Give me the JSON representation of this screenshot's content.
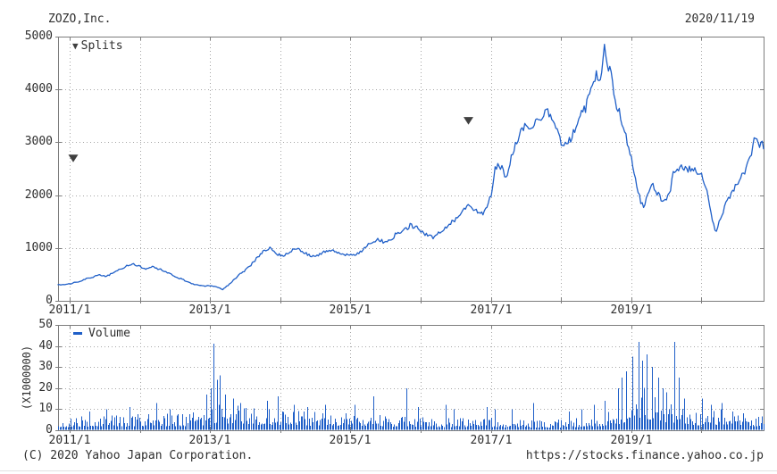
{
  "header": {
    "title": "ZOZO,Inc.",
    "date": "2020/11/19"
  },
  "legend": {
    "splits": "Splits",
    "volume": "Volume"
  },
  "footer": {
    "copyright": "(C) 2020 Yahoo Japan Corporation.",
    "url": "https://stocks.finance.yahoo.co.jp"
  },
  "colors": {
    "line": "#1f5fc8",
    "bar": "#1f5fc8",
    "grid": "#a6a6a6",
    "frame": "#7d7d7d",
    "marker": "#3f3f3f",
    "text": "#2e2e2e"
  },
  "chart_data": [
    {
      "type": "line",
      "name": "price",
      "title": "ZOZO,Inc. stock price (JPY)",
      "x_range": [
        2010.8333,
        2020.885
      ],
      "ylim": [
        0,
        5000
      ],
      "yticks": [
        0,
        1000,
        2000,
        3000,
        4000,
        5000
      ],
      "grid_years": [
        2011,
        2012,
        2013,
        2014,
        2015,
        2016,
        2017,
        2018,
        2019,
        2020
      ],
      "xticks": [
        {
          "x": 2011,
          "label": "2011/1"
        },
        {
          "x": 2013,
          "label": "2013/1"
        },
        {
          "x": 2015,
          "label": "2015/1"
        },
        {
          "x": 2017,
          "label": "2017/1"
        },
        {
          "x": 2019,
          "label": "2019/1"
        }
      ],
      "splits": [
        {
          "x": 2011.05,
          "y": 2700
        },
        {
          "x": 2016.68,
          "y": 3410
        }
      ],
      "anchors": [
        [
          2010.87,
          300
        ],
        [
          2011.0,
          320
        ],
        [
          2011.12,
          360
        ],
        [
          2011.22,
          410
        ],
        [
          2011.32,
          440
        ],
        [
          2011.42,
          490
        ],
        [
          2011.52,
          460
        ],
        [
          2011.65,
          550
        ],
        [
          2011.78,
          640
        ],
        [
          2011.9,
          700
        ],
        [
          2011.98,
          660
        ],
        [
          2012.08,
          600
        ],
        [
          2012.18,
          650
        ],
        [
          2012.28,
          600
        ],
        [
          2012.4,
          530
        ],
        [
          2012.52,
          450
        ],
        [
          2012.65,
          380
        ],
        [
          2012.78,
          310
        ],
        [
          2012.9,
          280
        ],
        [
          2013.0,
          285
        ],
        [
          2013.1,
          260
        ],
        [
          2013.18,
          215
        ],
        [
          2013.28,
          320
        ],
        [
          2013.4,
          480
        ],
        [
          2013.52,
          600
        ],
        [
          2013.64,
          760
        ],
        [
          2013.76,
          950
        ],
        [
          2013.85,
          1000
        ],
        [
          2013.95,
          880
        ],
        [
          2014.05,
          860
        ],
        [
          2014.15,
          950
        ],
        [
          2014.25,
          990
        ],
        [
          2014.35,
          900
        ],
        [
          2014.45,
          830
        ],
        [
          2014.55,
          870
        ],
        [
          2014.65,
          940
        ],
        [
          2014.75,
          960
        ],
        [
          2014.85,
          890
        ],
        [
          2014.95,
          860
        ],
        [
          2015.05,
          880
        ],
        [
          2015.15,
          930
        ],
        [
          2015.25,
          1060
        ],
        [
          2015.38,
          1170
        ],
        [
          2015.5,
          1090
        ],
        [
          2015.62,
          1220
        ],
        [
          2015.75,
          1340
        ],
        [
          2015.85,
          1420
        ],
        [
          2015.95,
          1370
        ],
        [
          2016.05,
          1270
        ],
        [
          2016.18,
          1210
        ],
        [
          2016.32,
          1350
        ],
        [
          2016.45,
          1480
        ],
        [
          2016.58,
          1690
        ],
        [
          2016.68,
          1810
        ],
        [
          2016.78,
          1720
        ],
        [
          2016.88,
          1620
        ],
        [
          2016.96,
          1850
        ],
        [
          2017.02,
          2100
        ],
        [
          2017.06,
          2500
        ],
        [
          2017.15,
          2520
        ],
        [
          2017.22,
          2360
        ],
        [
          2017.3,
          2750
        ],
        [
          2017.4,
          3100
        ],
        [
          2017.48,
          3300
        ],
        [
          2017.55,
          3180
        ],
        [
          2017.62,
          3420
        ],
        [
          2017.7,
          3350
        ],
        [
          2017.78,
          3620
        ],
        [
          2017.88,
          3420
        ],
        [
          2017.96,
          3180
        ],
        [
          2018.04,
          2900
        ],
        [
          2018.12,
          3060
        ],
        [
          2018.22,
          3320
        ],
        [
          2018.32,
          3560
        ],
        [
          2018.42,
          3980
        ],
        [
          2018.5,
          4250
        ],
        [
          2018.55,
          4080
        ],
        [
          2018.62,
          4800
        ],
        [
          2018.66,
          4380
        ],
        [
          2018.7,
          4520
        ],
        [
          2018.76,
          3850
        ],
        [
          2018.82,
          3620
        ],
        [
          2018.88,
          3320
        ],
        [
          2018.94,
          3020
        ],
        [
          2019.0,
          2720
        ],
        [
          2019.06,
          2280
        ],
        [
          2019.12,
          1950
        ],
        [
          2019.17,
          1770
        ],
        [
          2019.24,
          2000
        ],
        [
          2019.3,
          2230
        ],
        [
          2019.38,
          2020
        ],
        [
          2019.45,
          1880
        ],
        [
          2019.52,
          1980
        ],
        [
          2019.56,
          2120
        ],
        [
          2019.6,
          2450
        ],
        [
          2019.7,
          2500
        ],
        [
          2019.8,
          2512
        ],
        [
          2019.9,
          2480
        ],
        [
          2019.97,
          2420
        ],
        [
          2020.03,
          2250
        ],
        [
          2020.08,
          2050
        ],
        [
          2020.14,
          1600
        ],
        [
          2020.2,
          1280
        ],
        [
          2020.28,
          1600
        ],
        [
          2020.35,
          1850
        ],
        [
          2020.42,
          2050
        ],
        [
          2020.48,
          2180
        ],
        [
          2020.55,
          2320
        ],
        [
          2020.62,
          2450
        ],
        [
          2020.68,
          2700
        ],
        [
          2020.74,
          2980
        ],
        [
          2020.79,
          3120
        ],
        [
          2020.82,
          2840
        ],
        [
          2020.85,
          3060
        ],
        [
          2020.885,
          2780
        ]
      ]
    },
    {
      "type": "bar",
      "name": "volume",
      "legend": "Volume",
      "unit_label": "(X1000000)",
      "x_range": [
        2010.8333,
        2020.885
      ],
      "ylim": [
        0,
        50
      ],
      "yticks": [
        0,
        10,
        20,
        30,
        40,
        50
      ],
      "xticks": [
        {
          "x": 2011,
          "label": "2011/1"
        },
        {
          "x": 2013,
          "label": "2013/1"
        },
        {
          "x": 2015,
          "label": "2015/1"
        },
        {
          "x": 2017,
          "label": "2017/1"
        },
        {
          "x": 2019,
          "label": "2019/1"
        }
      ],
      "baseline": [
        [
          2010.87,
          3.2
        ],
        [
          2011.3,
          4.0
        ],
        [
          2011.8,
          4.2
        ],
        [
          2012.2,
          4.5
        ],
        [
          2012.7,
          4.5
        ],
        [
          2012.95,
          6.0
        ],
        [
          2013.08,
          8.5
        ],
        [
          2013.3,
          7.5
        ],
        [
          2013.6,
          6.0
        ],
        [
          2014.0,
          5.5
        ],
        [
          2014.5,
          5.0
        ],
        [
          2015.0,
          4.5
        ],
        [
          2015.5,
          4.2
        ],
        [
          2016.0,
          3.6
        ],
        [
          2016.5,
          3.2
        ],
        [
          2017.0,
          3.4
        ],
        [
          2017.5,
          2.8
        ],
        [
          2018.0,
          3.0
        ],
        [
          2018.5,
          3.8
        ],
        [
          2018.8,
          6.5
        ],
        [
          2019.0,
          11
        ],
        [
          2019.15,
          14
        ],
        [
          2019.3,
          11
        ],
        [
          2019.5,
          9
        ],
        [
          2019.65,
          8
        ],
        [
          2019.8,
          6
        ],
        [
          2020.0,
          5.5
        ],
        [
          2020.3,
          6.0
        ],
        [
          2020.6,
          5.0
        ],
        [
          2020.885,
          4.0
        ]
      ],
      "spikes": [
        [
          2011.28,
          9
        ],
        [
          2011.53,
          10
        ],
        [
          2011.85,
          11
        ],
        [
          2012.23,
          13
        ],
        [
          2012.42,
          10
        ],
        [
          2012.95,
          17
        ],
        [
          2013.0,
          20
        ],
        [
          2013.05,
          41
        ],
        [
          2013.1,
          24
        ],
        [
          2013.14,
          26
        ],
        [
          2013.21,
          17
        ],
        [
          2013.33,
          15
        ],
        [
          2013.43,
          13
        ],
        [
          2013.81,
          14
        ],
        [
          2013.97,
          16
        ],
        [
          2014.19,
          12
        ],
        [
          2014.38,
          11
        ],
        [
          2014.63,
          12
        ],
        [
          2015.07,
          12
        ],
        [
          2015.33,
          16
        ],
        [
          2015.79,
          20
        ],
        [
          2015.96,
          11
        ],
        [
          2016.34,
          12
        ],
        [
          2016.46,
          10
        ],
        [
          2016.94,
          11
        ],
        [
          2017.06,
          10
        ],
        [
          2017.29,
          10
        ],
        [
          2017.6,
          13
        ],
        [
          2018.11,
          9
        ],
        [
          2018.3,
          10
        ],
        [
          2018.46,
          12
        ],
        [
          2018.62,
          14
        ],
        [
          2018.81,
          20
        ],
        [
          2018.87,
          25
        ],
        [
          2018.93,
          28
        ],
        [
          2019.02,
          35
        ],
        [
          2019.1,
          42
        ],
        [
          2019.15,
          33
        ],
        [
          2019.21,
          36
        ],
        [
          2019.29,
          30
        ],
        [
          2019.38,
          25
        ],
        [
          2019.44,
          20
        ],
        [
          2019.51,
          18
        ],
        [
          2019.61,
          42
        ],
        [
          2019.67,
          25
        ],
        [
          2019.76,
          15
        ],
        [
          2020.01,
          15
        ],
        [
          2020.14,
          12
        ],
        [
          2020.29,
          13
        ],
        [
          2020.45,
          9
        ],
        [
          2020.6,
          8
        ]
      ]
    }
  ]
}
